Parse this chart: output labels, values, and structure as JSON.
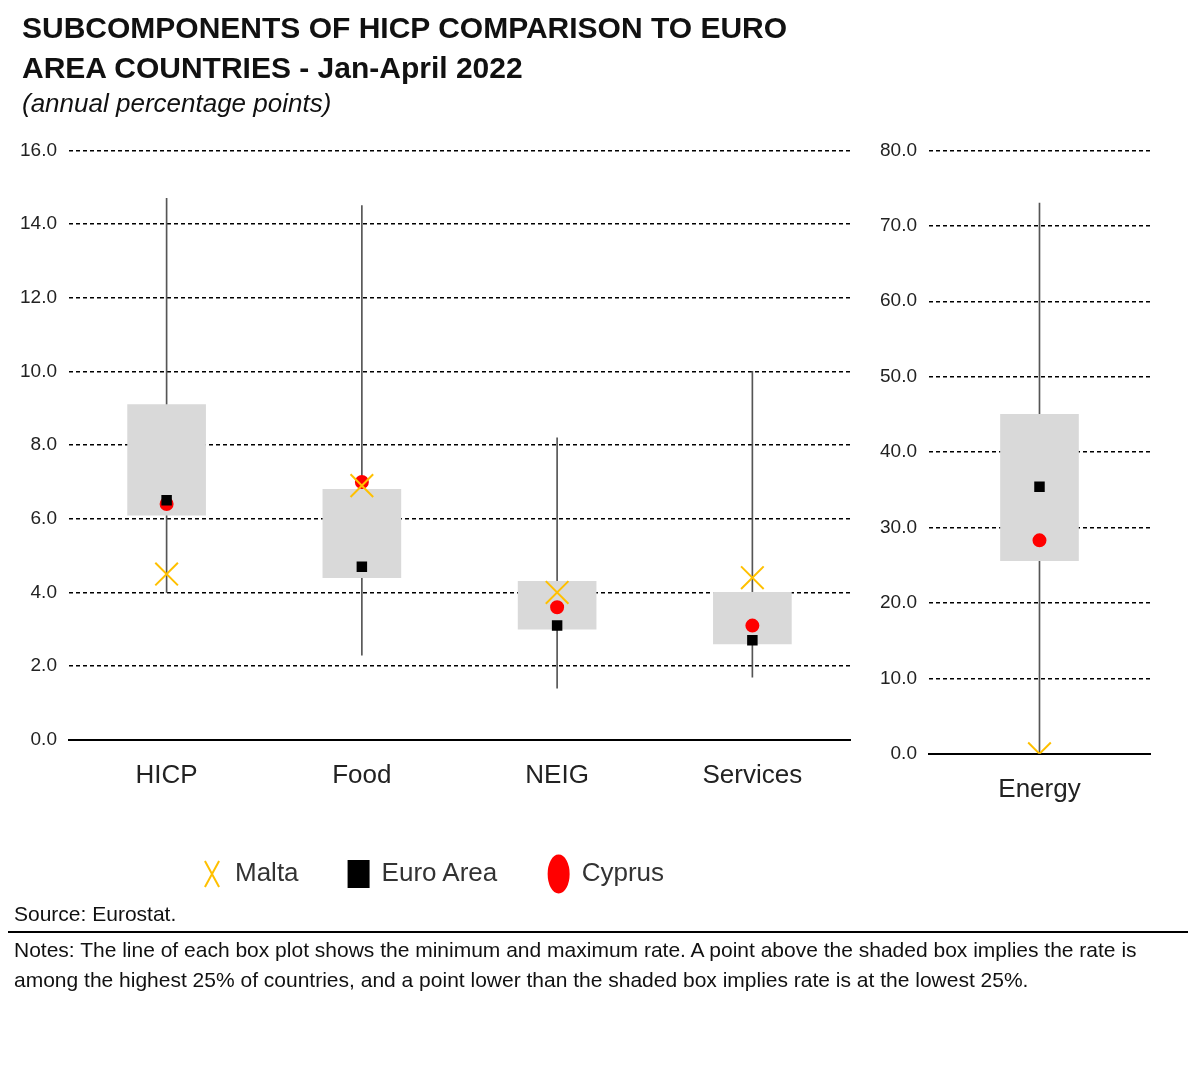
{
  "chart_data": [
    {
      "type": "box",
      "title": "SUBCOMPONENTS OF HICP COMPARISON TO EURO AREA COUNTRIES - Jan-April 2022",
      "subtitle": "(annual percentage points)",
      "categories": [
        "HICP",
        "Food",
        "NEIG",
        "Services"
      ],
      "color": "#d9d9d9",
      "boxes": [
        {
          "low": 4.0,
          "q1": 6.1,
          "q3": 9.1,
          "high": 14.7
        },
        {
          "low": 2.3,
          "q1": 4.4,
          "q3": 6.8,
          "high": 14.5
        },
        {
          "low": 1.4,
          "q1": 3.0,
          "q3": 4.3,
          "high": 8.2
        },
        {
          "low": 1.7,
          "q1": 2.6,
          "q3": 4.0,
          "high": 10.0
        }
      ],
      "series": [
        {
          "name": "Malta",
          "type": "scatter",
          "marker": "cross",
          "color": "#ffc000",
          "values": [
            4.5,
            6.9,
            4.0,
            4.4
          ]
        },
        {
          "name": "Euro Area",
          "type": "scatter",
          "marker": "square",
          "color": "#000000",
          "values": [
            6.5,
            4.7,
            3.1,
            2.7
          ]
        },
        {
          "name": "Cyprus",
          "type": "scatter",
          "marker": "circle",
          "color": "#ff0000",
          "values": [
            6.4,
            7.0,
            3.6,
            3.1
          ]
        }
      ],
      "ylim": [
        0,
        16
      ],
      "yticks": [
        {
          "value": 0,
          "label": "0.0"
        },
        {
          "value": 2,
          "label": "2.0"
        },
        {
          "value": 4,
          "label": "4.0"
        },
        {
          "value": 6,
          "label": "6.0"
        },
        {
          "value": 8,
          "label": "8.0"
        },
        {
          "value": 10,
          "label": "10.0"
        },
        {
          "value": 12,
          "label": "12.0"
        },
        {
          "value": 14,
          "label": "14.0"
        },
        {
          "value": 16,
          "label": "16.0"
        }
      ],
      "grid": "y",
      "legend": "bottom",
      "annotations": [
        "Source: Eurostat.",
        "Notes: The line of each box plot shows the minimum and maximum rate. A point above the shaded box implies the rate is among the highest 25% of countries, and a point lower than the shaded box implies rate is at the lowest 25%."
      ]
    },
    {
      "type": "box",
      "categories": [
        "Energy"
      ],
      "color": "#d9d9d9",
      "boxes": [
        {
          "low": 0,
          "q1": 25.6,
          "q3": 45,
          "high": 73
        }
      ],
      "series": [
        {
          "type": "scatter",
          "marker": "cross",
          "color": "#ffc000",
          "values": [
            0
          ]
        },
        {
          "type": "scatter",
          "marker": "square",
          "color": "#000000",
          "values": [
            35.4
          ]
        },
        {
          "type": "scatter",
          "marker": "circle",
          "color": "#ff0000",
          "values": [
            28.3
          ]
        }
      ],
      "ylim": [
        0,
        80
      ],
      "yticks": [
        {
          "value": 0,
          "label": "0.0"
        },
        {
          "value": 10,
          "label": "10.0"
        },
        {
          "value": 20,
          "label": "20.0"
        },
        {
          "value": 30,
          "label": "30.0"
        },
        {
          "value": 40,
          "label": "40.0"
        },
        {
          "value": 50,
          "label": "50.0"
        },
        {
          "value": 60,
          "label": "60.0"
        },
        {
          "value": 70,
          "label": "70.0"
        },
        {
          "value": 80,
          "label": "80.0"
        }
      ],
      "grid": "y"
    }
  ]
}
